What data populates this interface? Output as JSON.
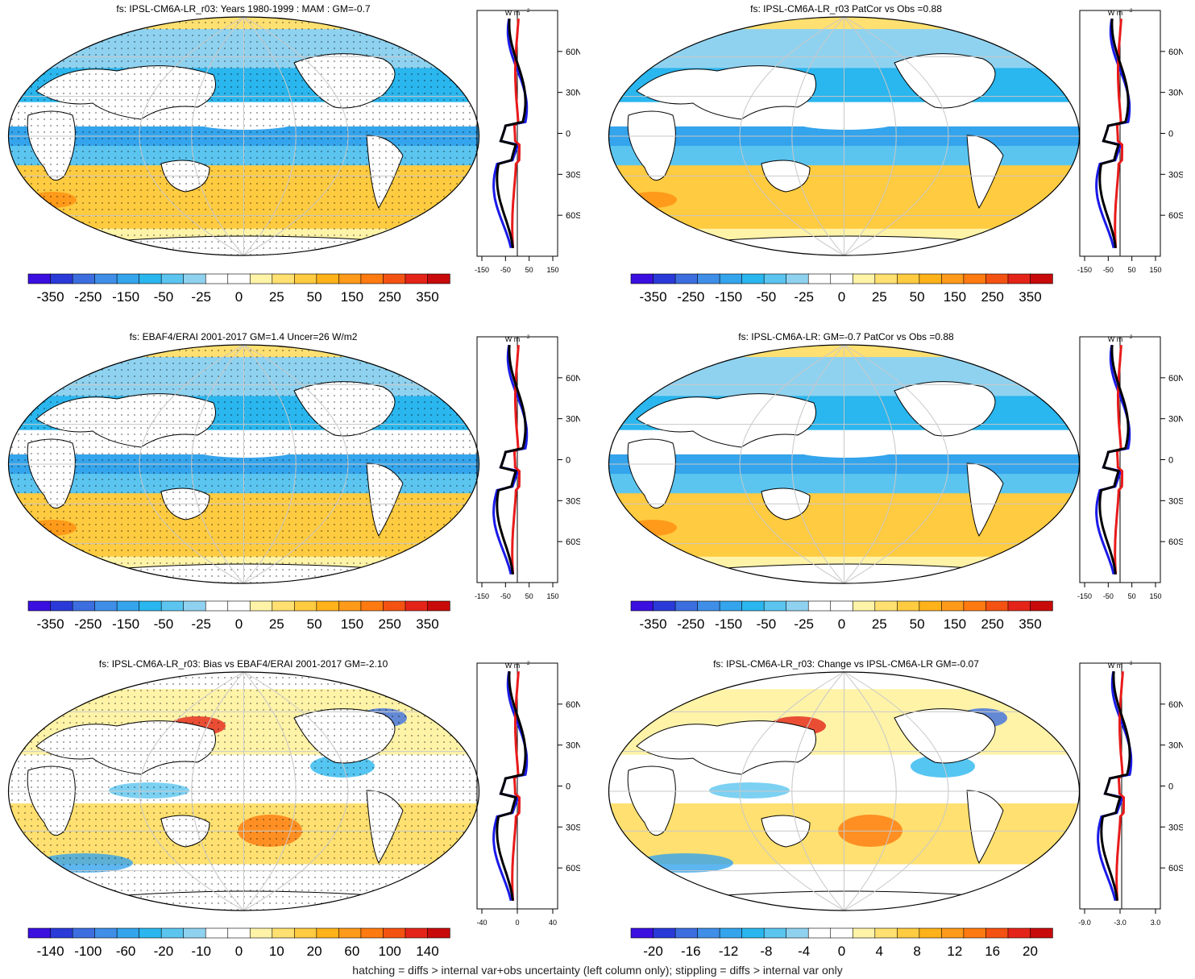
{
  "footer": "hatching = diffs > internal var+obs uncertainty (left column only); stippling = diffs > internal var only",
  "colors": {
    "scale": [
      "#3a0fe0",
      "#2a3ad8",
      "#3c6ee0",
      "#3f8ee8",
      "#34a4ec",
      "#2ab6ee",
      "#5bc5f0",
      "#8fd2f0",
      "#ffffff",
      "#ffffff",
      "#fff3a8",
      "#ffe070",
      "#ffcb40",
      "#ffb21a",
      "#ff9a1a",
      "#ff7a10",
      "#f45212",
      "#e42418",
      "#c80a0a"
    ],
    "land": "#ffffff",
    "zonal_model": "#000000",
    "zonal_obs": "#1a1ae8",
    "zonal_diff": "#e81a1a"
  },
  "zonal_unit": "W m",
  "lat_labels": [
    "60N",
    "30N",
    "0",
    "30S",
    "60S"
  ],
  "panels": [
    {
      "title": "fs: IPSL-CM6A-LR_r03: Years 1980-1999 : MAM : GM=-0.7",
      "stipple": true,
      "cbar_labels": [
        "-350",
        "-250",
        "-150",
        "-50",
        "-25",
        "0",
        "25",
        "50",
        "150",
        "250",
        "350"
      ],
      "zonal_ticks": [
        "-150",
        "-50",
        "50",
        "150"
      ]
    },
    {
      "title": "fs: IPSL-CM6A-LR_r03 PatCor vs Obs =0.88",
      "stipple": false,
      "cbar_labels": [
        "-350",
        "-250",
        "-150",
        "-50",
        "-25",
        "0",
        "25",
        "50",
        "150",
        "250",
        "350"
      ],
      "zonal_ticks": [
        "-150",
        "-50",
        "50",
        "150"
      ]
    },
    {
      "title": "fs: EBAF4/ERAI 2001-2017 GM=1.4 Uncer=26 W/m2",
      "stipple": true,
      "cbar_labels": [
        "-350",
        "-250",
        "-150",
        "-50",
        "-25",
        "0",
        "25",
        "50",
        "150",
        "250",
        "350"
      ],
      "zonal_ticks": [
        "-150",
        "-50",
        "50",
        "150"
      ]
    },
    {
      "title": "fs: IPSL-CM6A-LR: GM=-0.7 PatCor vs Obs =0.88",
      "stipple": false,
      "cbar_labels": [
        "-350",
        "-250",
        "-150",
        "-50",
        "-25",
        "0",
        "25",
        "50",
        "150",
        "250",
        "350"
      ],
      "zonal_ticks": [
        "-150",
        "-50",
        "50",
        "150"
      ]
    },
    {
      "title": "fs: IPSL-CM6A-LR_r03: Bias vs EBAF4/ERAI 2001-2017 GM=-2.10",
      "stipple": true,
      "cbar_labels": [
        "-140",
        "-100",
        "-60",
        "-20",
        "-10",
        "0",
        "10",
        "20",
        "60",
        "100",
        "140"
      ],
      "zonal_ticks": [
        "-40",
        "0",
        "40"
      ]
    },
    {
      "title": "fs: IPSL-CM6A-LR_r03: Change vs IPSL-CM6A-LR GM=-0.07",
      "stipple": false,
      "cbar_labels": [
        "-20",
        "-16",
        "-12",
        "-8",
        "-4",
        "0",
        "4",
        "8",
        "12",
        "16",
        "20"
      ],
      "zonal_ticks": [
        "-9.0",
        "-3.0",
        "3.0"
      ]
    }
  ]
}
